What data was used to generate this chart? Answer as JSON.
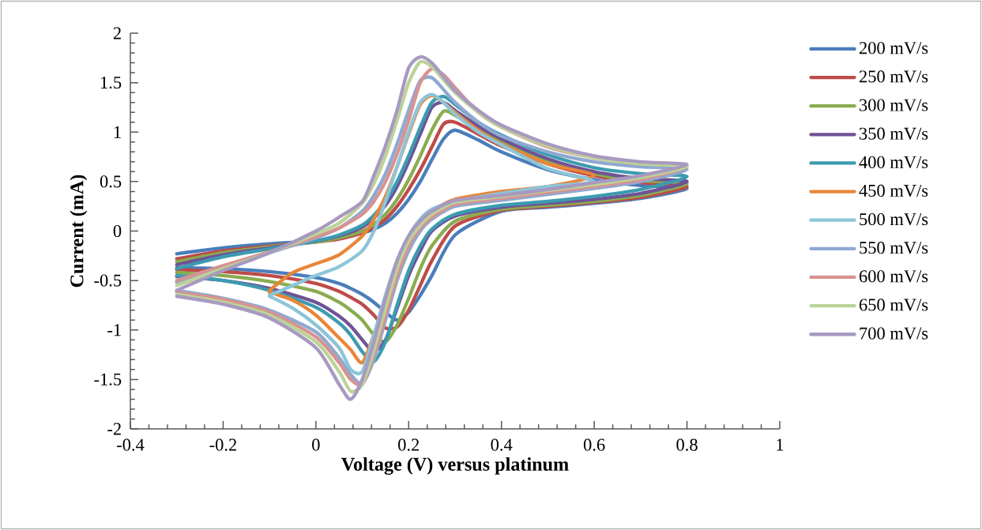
{
  "chart_data": {
    "type": "line",
    "xlabel": "Voltage (V) versus platinum",
    "ylabel": "Current (mA)",
    "xlim": [
      -0.4,
      1
    ],
    "ylim": [
      -2,
      2
    ],
    "xticks": [
      -0.4,
      -0.2,
      0,
      0.2,
      0.4,
      0.6,
      0.8,
      1
    ],
    "yticks": [
      -2,
      -1.5,
      -1,
      -0.5,
      0,
      0.5,
      1,
      1.5,
      2
    ],
    "grid": false,
    "legend": "right",
    "marker": "none",
    "line_style": "solid",
    "x": [
      -0.3,
      -0.2,
      -0.1,
      0,
      0.05,
      0.1,
      0.125,
      0.15,
      0.175,
      0.2,
      0.225,
      0.25,
      0.275,
      0.3,
      0.35,
      0.4,
      0.5,
      0.6,
      0.7,
      0.8,
      0.7,
      0.6,
      0.5,
      0.4,
      0.3,
      0.25,
      0.225,
      0.2,
      0.175,
      0.15,
      0.125,
      0.1,
      0.075,
      0.05,
      0,
      -0.1,
      -0.2,
      -0.3
    ],
    "series": [
      {
        "name": "200 mV/s",
        "color": "#4a7ebb",
        "values": [
          -0.23,
          -0.17,
          -0.13,
          -0.1,
          -0.07,
          -0.02,
          0.02,
          0.08,
          0.18,
          0.32,
          0.5,
          0.72,
          0.93,
          1.02,
          0.92,
          0.8,
          0.62,
          0.52,
          0.46,
          0.43,
          0.33,
          0.28,
          0.24,
          0.2,
          -0.04,
          -0.45,
          -0.65,
          -0.82,
          -0.9,
          -0.82,
          -0.72,
          -0.64,
          -0.58,
          -0.53,
          -0.47,
          -0.41,
          -0.38,
          -0.37
        ]
      },
      {
        "name": "250 mV/s",
        "color": "#be4b48",
        "values": [
          -0.28,
          -0.2,
          -0.15,
          -0.11,
          -0.08,
          -0.02,
          0.04,
          0.12,
          0.25,
          0.42,
          0.62,
          0.85,
          1.08,
          1.1,
          0.98,
          0.86,
          0.68,
          0.56,
          0.49,
          0.45,
          0.34,
          0.29,
          0.25,
          0.21,
          0.05,
          -0.3,
          -0.55,
          -0.8,
          -0.97,
          -0.98,
          -0.85,
          -0.74,
          -0.67,
          -0.61,
          -0.53,
          -0.45,
          -0.41,
          -0.39
        ]
      },
      {
        "name": "300 mV/s",
        "color": "#8aac4f",
        "values": [
          -0.31,
          -0.22,
          -0.16,
          -0.11,
          -0.07,
          0.0,
          0.07,
          0.17,
          0.32,
          0.52,
          0.76,
          1.02,
          1.21,
          1.17,
          1.03,
          0.9,
          0.7,
          0.58,
          0.51,
          0.48,
          0.36,
          0.3,
          0.26,
          0.22,
          0.1,
          -0.15,
          -0.38,
          -0.68,
          -0.95,
          -1.12,
          -1.05,
          -0.9,
          -0.8,
          -0.72,
          -0.61,
          -0.51,
          -0.45,
          -0.42
        ]
      },
      {
        "name": "350 mV/s",
        "color": "#6f5396",
        "values": [
          -0.34,
          -0.24,
          -0.17,
          -0.1,
          -0.05,
          0.04,
          0.13,
          0.26,
          0.45,
          0.7,
          0.98,
          1.25,
          1.3,
          1.22,
          1.06,
          0.93,
          0.73,
          0.6,
          0.53,
          0.5,
          0.38,
          0.32,
          0.28,
          0.24,
          0.15,
          0.0,
          -0.2,
          -0.45,
          -0.78,
          -1.1,
          -1.22,
          -1.1,
          -0.96,
          -0.86,
          -0.72,
          -0.58,
          -0.5,
          -0.46
        ]
      },
      {
        "name": "400 mV/s",
        "color": "#3c9bb0",
        "values": [
          -0.38,
          -0.26,
          -0.18,
          -0.1,
          -0.04,
          0.06,
          0.16,
          0.3,
          0.5,
          0.76,
          1.05,
          1.3,
          1.36,
          1.28,
          1.1,
          0.97,
          0.77,
          0.64,
          0.58,
          0.55,
          0.42,
          0.35,
          0.3,
          0.26,
          0.17,
          0.02,
          -0.15,
          -0.4,
          -0.75,
          -1.12,
          -1.32,
          -1.22,
          -1.05,
          -0.93,
          -0.77,
          -0.6,
          -0.5,
          -0.45
        ]
      },
      {
        "name": "450 mV/s",
        "color": "#e8863a",
        "x": [
          -0.1,
          -0.05,
          0,
          0.05,
          0.1,
          0.125,
          0.15,
          0.175,
          0.2,
          0.225,
          0.25,
          0.275,
          0.3,
          0.35,
          0.4,
          0.5,
          0.6,
          0.5,
          0.4,
          0.3,
          0.25,
          0.225,
          0.2,
          0.175,
          0.15,
          0.125,
          0.1,
          0.075,
          0.05,
          0,
          -0.05,
          -0.1
        ],
        "values": [
          -0.6,
          -0.42,
          -0.33,
          -0.24,
          -0.05,
          0.12,
          0.35,
          0.65,
          0.98,
          1.28,
          1.37,
          1.3,
          1.2,
          1.02,
          0.88,
          0.68,
          0.56,
          0.45,
          0.4,
          0.32,
          0.2,
          0.08,
          -0.1,
          -0.35,
          -0.7,
          -1.05,
          -1.33,
          -1.2,
          -1.08,
          -0.85,
          -0.7,
          -0.62
        ]
      },
      {
        "name": "500 mV/s",
        "color": "#8dc5d8",
        "x": [
          -0.1,
          -0.05,
          0,
          0.05,
          0.1,
          0.125,
          0.15,
          0.175,
          0.2,
          0.225,
          0.25,
          0.275,
          0.3,
          0.35,
          0.4,
          0.5,
          0.6,
          0.5,
          0.4,
          0.3,
          0.25,
          0.225,
          0.2,
          0.175,
          0.15,
          0.125,
          0.1,
          0.075,
          0.05,
          0,
          -0.05,
          -0.1
        ],
        "values": [
          -0.65,
          -0.55,
          -0.45,
          -0.36,
          -0.2,
          0.0,
          0.3,
          0.65,
          1.0,
          1.3,
          1.38,
          1.3,
          1.18,
          1.0,
          0.87,
          0.63,
          0.5,
          0.45,
          0.38,
          0.3,
          0.22,
          0.12,
          -0.05,
          -0.3,
          -0.65,
          -1.05,
          -1.42,
          -1.4,
          -1.18,
          -0.95,
          -0.78,
          -0.66
        ]
      },
      {
        "name": "550 mV/s",
        "color": "#8fa9d1",
        "values": [
          -0.52,
          -0.36,
          -0.22,
          -0.07,
          0.03,
          0.2,
          0.36,
          0.58,
          0.88,
          1.22,
          1.52,
          1.55,
          1.43,
          1.3,
          1.1,
          0.96,
          0.8,
          0.7,
          0.65,
          0.62,
          0.5,
          0.43,
          0.37,
          0.31,
          0.25,
          0.12,
          0.0,
          -0.2,
          -0.5,
          -0.9,
          -1.3,
          -1.54,
          -1.45,
          -1.28,
          -1.02,
          -0.8,
          -0.68,
          -0.6
        ]
      },
      {
        "name": "600 mV/s",
        "color": "#d79391",
        "values": [
          -0.5,
          -0.35,
          -0.21,
          -0.06,
          0.03,
          0.17,
          0.3,
          0.5,
          0.78,
          1.12,
          1.5,
          1.64,
          1.58,
          1.45,
          1.2,
          1.05,
          0.85,
          0.74,
          0.68,
          0.65,
          0.52,
          0.45,
          0.39,
          0.33,
          0.27,
          0.14,
          0.03,
          -0.15,
          -0.45,
          -0.85,
          -1.25,
          -1.55,
          -1.5,
          -1.33,
          -1.07,
          -0.82,
          -0.69,
          -0.62
        ]
      },
      {
        "name": "650 mV/s",
        "color": "#bcd397",
        "values": [
          -0.55,
          -0.38,
          -0.22,
          -0.03,
          0.08,
          0.28,
          0.48,
          0.76,
          1.12,
          1.5,
          1.71,
          1.66,
          1.53,
          1.4,
          1.2,
          1.05,
          0.86,
          0.74,
          0.68,
          0.65,
          0.54,
          0.47,
          0.41,
          0.35,
          0.29,
          0.17,
          0.06,
          -0.1,
          -0.38,
          -0.78,
          -1.2,
          -1.55,
          -1.62,
          -1.42,
          -1.12,
          -0.85,
          -0.72,
          -0.64
        ]
      },
      {
        "name": "700 mV/s",
        "color": "#a899c1",
        "values": [
          -0.6,
          -0.4,
          -0.22,
          0.0,
          0.14,
          0.3,
          0.56,
          0.86,
          1.22,
          1.65,
          1.76,
          1.7,
          1.56,
          1.42,
          1.22,
          1.07,
          0.88,
          0.76,
          0.7,
          0.67,
          0.56,
          0.49,
          0.42,
          0.36,
          0.31,
          0.2,
          0.1,
          -0.05,
          -0.3,
          -0.68,
          -1.12,
          -1.5,
          -1.7,
          -1.55,
          -1.18,
          -0.88,
          -0.74,
          -0.66
        ]
      }
    ]
  }
}
